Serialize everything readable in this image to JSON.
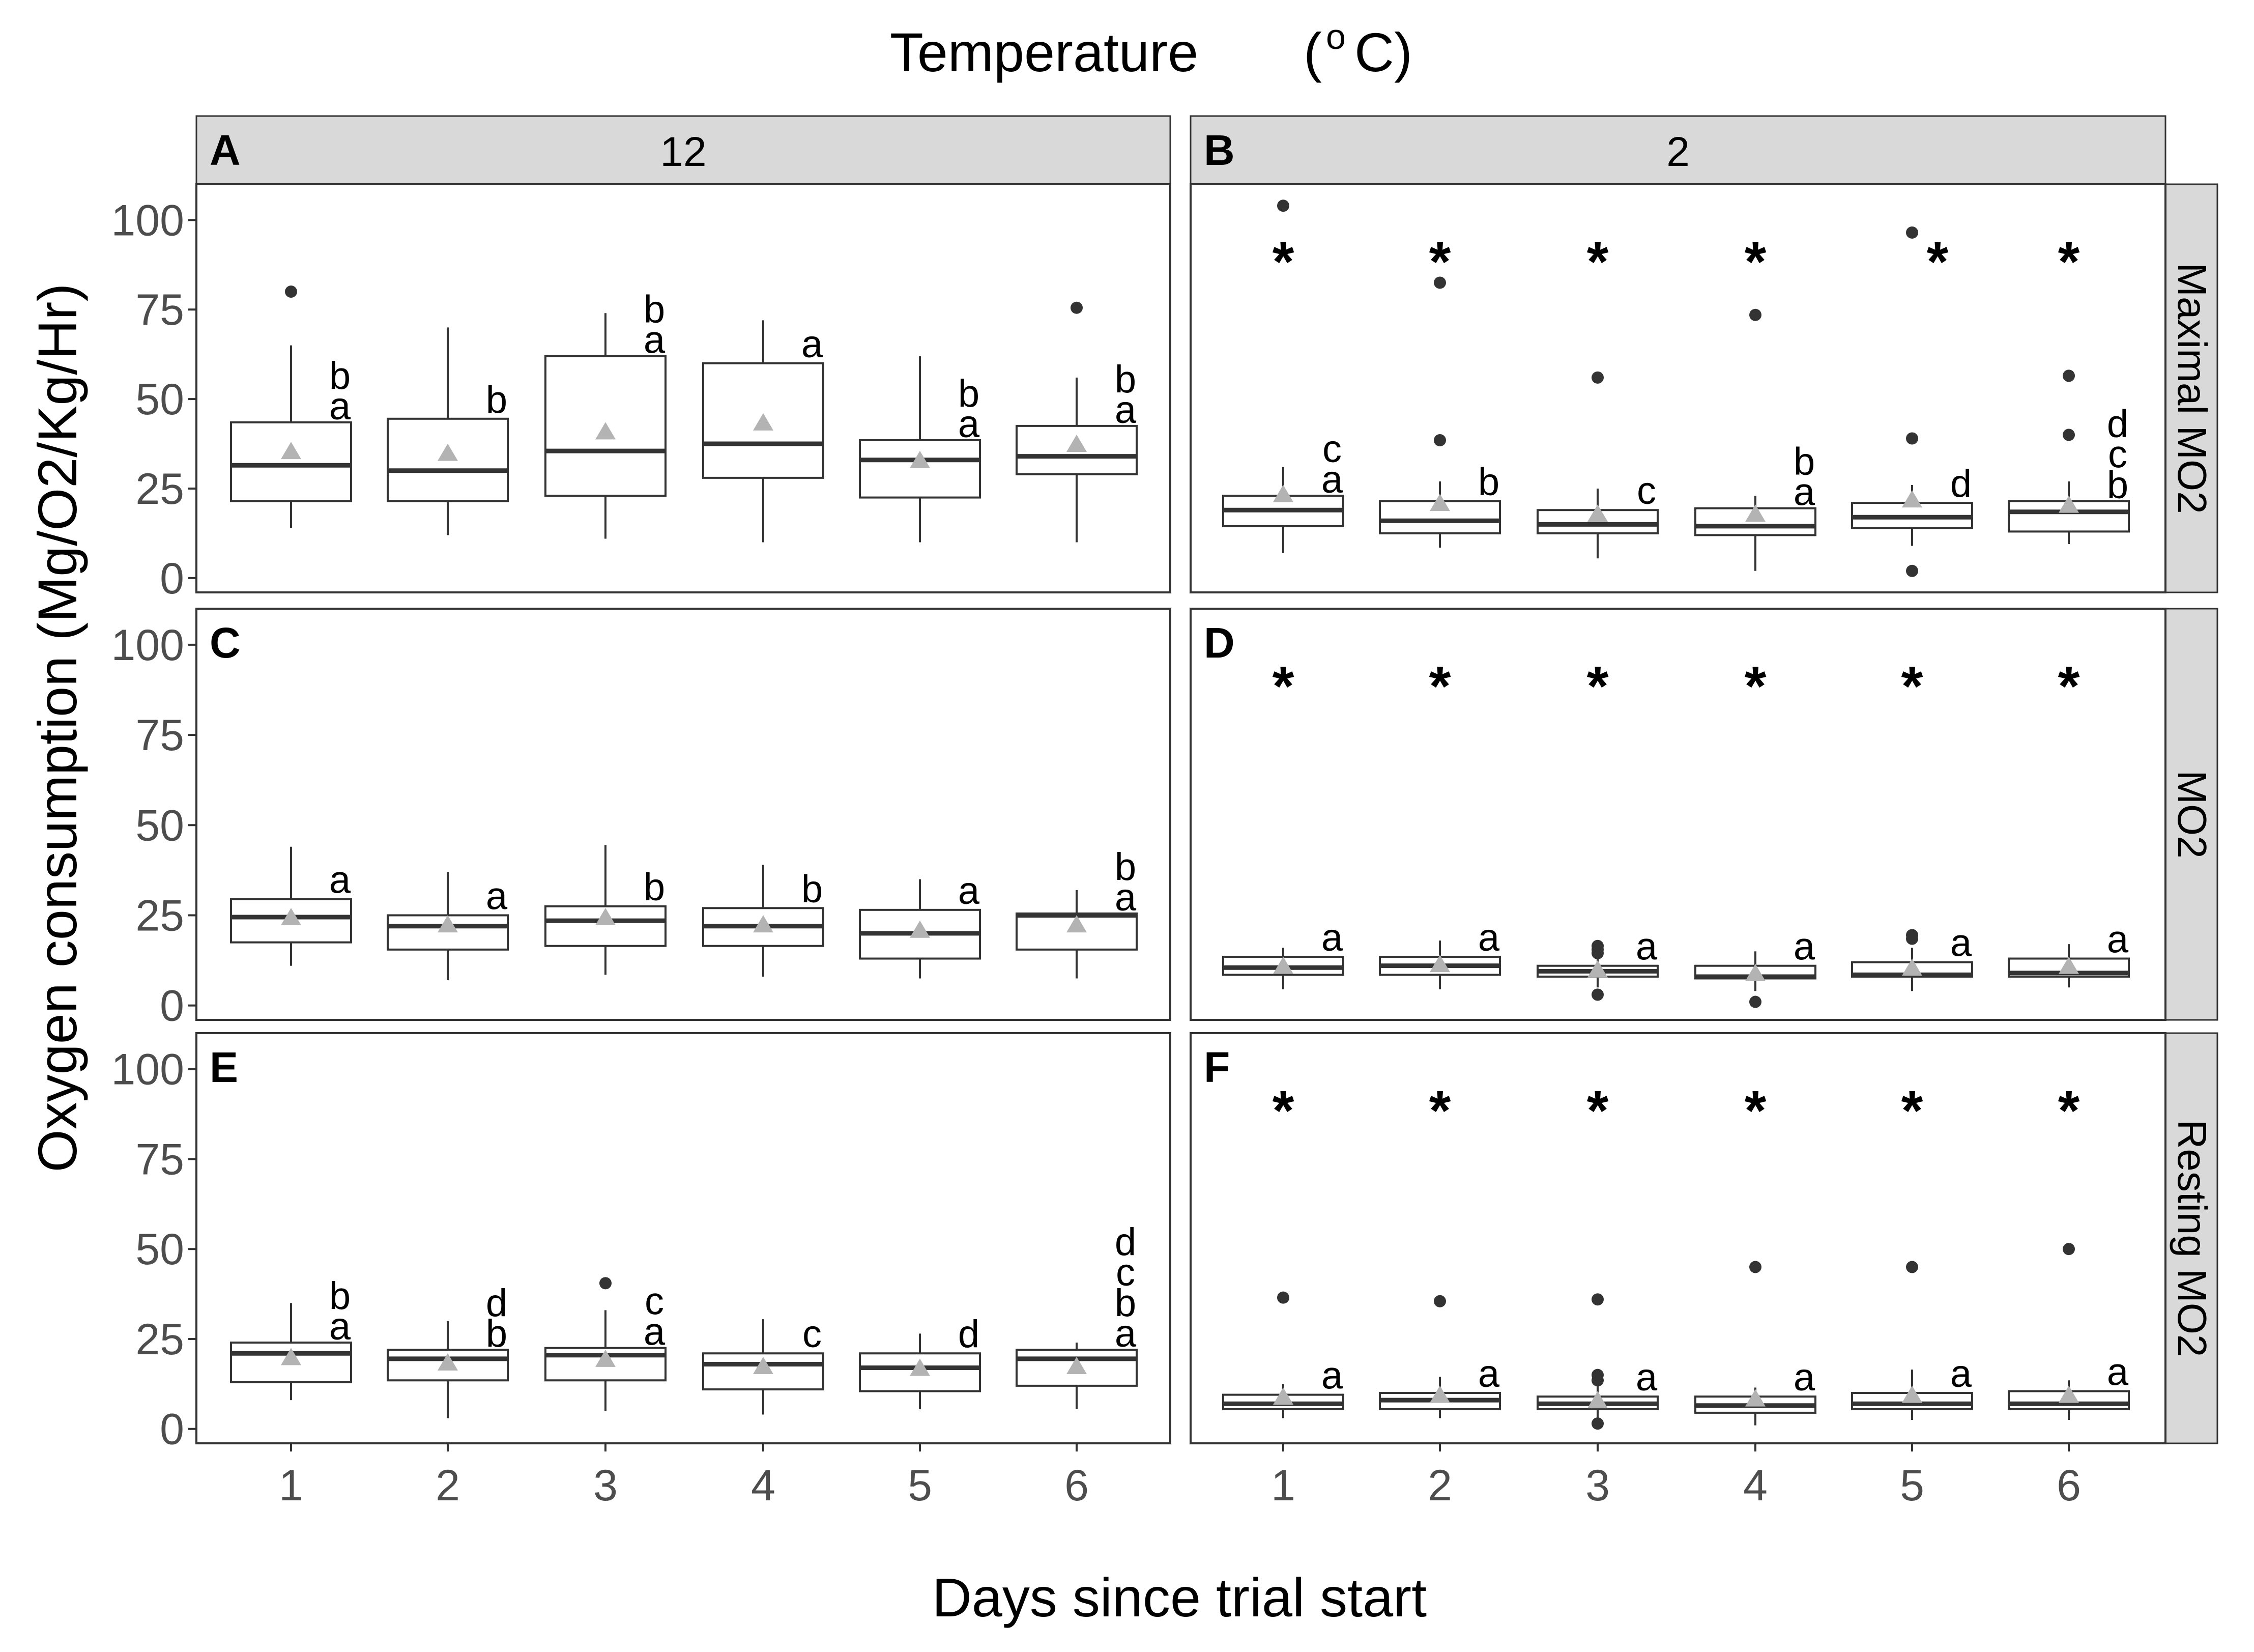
{
  "figure": {
    "title": "Temperature",
    "title_unit_o": "o",
    "title_unit_c": "C",
    "xlabel": "Days since trial start",
    "ylabel": "Oxygen consumption (Mg/O2/Kg/Hr)",
    "columns": [
      "12",
      "2"
    ],
    "rows": [
      "Maximal MO2",
      "MO2",
      "Resting MO2"
    ],
    "x_ticks": [
      "1",
      "2",
      "3",
      "4",
      "5",
      "6"
    ],
    "y_ticks": [
      "0",
      "25",
      "50",
      "75",
      "100"
    ]
  },
  "colors": {
    "strip_fill": "#d9d9d9",
    "panel_border": "#333333",
    "box_line": "#333333",
    "median_line": "#333333",
    "outlier": "#333333",
    "mean_marker": "#b3b3b3",
    "axis_text": "#4d4d4d",
    "text": "#000000"
  },
  "chart_data": {
    "type": "boxplot",
    "x": [
      1,
      2,
      3,
      4,
      5,
      6
    ],
    "ylim": [
      -4,
      110
    ],
    "y_ticks": [
      0,
      25,
      50,
      75,
      100
    ],
    "panels": [
      {
        "label": "A",
        "temperature": "12",
        "measure": "Maximal MO2",
        "boxes": [
          {
            "day": 1,
            "whisker_low": 14,
            "q1": 21.5,
            "median": 31.5,
            "q3": 43.5,
            "whisker_high": 65,
            "mean": 35.5,
            "outliers": [
              80
            ],
            "letters": [
              "b",
              "a"
            ]
          },
          {
            "day": 2,
            "whisker_low": 12,
            "q1": 21.5,
            "median": 30,
            "q3": 44.5,
            "whisker_high": 70,
            "mean": 35,
            "outliers": [],
            "letters": [
              "b"
            ]
          },
          {
            "day": 3,
            "whisker_low": 11,
            "q1": 23,
            "median": 35.5,
            "q3": 62,
            "whisker_high": 74,
            "mean": 41,
            "outliers": [],
            "letters": [
              "b",
              "a"
            ]
          },
          {
            "day": 4,
            "whisker_low": 10,
            "q1": 28,
            "median": 37.5,
            "q3": 60,
            "whisker_high": 72,
            "mean": 43.5,
            "outliers": [],
            "letters": [
              "a"
            ]
          },
          {
            "day": 5,
            "whisker_low": 10,
            "q1": 22.5,
            "median": 33,
            "q3": 38.5,
            "whisker_high": 62,
            "mean": 33,
            "outliers": [],
            "letters": [
              "b",
              "a"
            ]
          },
          {
            "day": 6,
            "whisker_low": 10,
            "q1": 29,
            "median": 34,
            "q3": 42.5,
            "whisker_high": 56,
            "mean": 37.5,
            "outliers": [
              75.5
            ],
            "letters": [
              "b",
              "a"
            ]
          }
        ],
        "asterisks": []
      },
      {
        "label": "B",
        "temperature": "2",
        "measure": "Maximal MO2",
        "boxes": [
          {
            "day": 1,
            "whisker_low": 7,
            "q1": 14.5,
            "median": 19,
            "q3": 23,
            "whisker_high": 31,
            "mean": 23.5,
            "outliers": [
              104
            ],
            "letters": [
              "c",
              "a"
            ]
          },
          {
            "day": 2,
            "whisker_low": 8.5,
            "q1": 12.5,
            "median": 16,
            "q3": 21.5,
            "whisker_high": 27,
            "mean": 21,
            "outliers": [
              82.5,
              38.5
            ],
            "letters": [
              "b"
            ]
          },
          {
            "day": 3,
            "whisker_low": 5.5,
            "q1": 12.5,
            "median": 15,
            "q3": 19,
            "whisker_high": 25,
            "mean": 18,
            "outliers": [
              56
            ],
            "letters": [
              "c"
            ]
          },
          {
            "day": 4,
            "whisker_low": 2,
            "q1": 12,
            "median": 14.5,
            "q3": 19.5,
            "whisker_high": 23,
            "mean": 18,
            "outliers": [
              73.5
            ],
            "letters": [
              "b",
              "a"
            ]
          },
          {
            "day": 5,
            "whisker_low": 9,
            "q1": 14,
            "median": 17,
            "q3": 21,
            "whisker_high": 26,
            "mean": 22,
            "outliers": [
              96.5,
              39,
              2
            ],
            "letters": [
              "d"
            ]
          },
          {
            "day": 6,
            "whisker_low": 9.5,
            "q1": 13,
            "median": 18.5,
            "q3": 21.5,
            "whisker_high": 27,
            "mean": 20.5,
            "outliers": [
              56.5,
              40
            ],
            "letters": [
              "d",
              "c",
              "b"
            ]
          }
        ],
        "asterisks": [
          1,
          2,
          3,
          4,
          5,
          6
        ]
      },
      {
        "label": "C",
        "temperature": "12",
        "measure": "MO2",
        "boxes": [
          {
            "day": 1,
            "whisker_low": 11,
            "q1": 17.5,
            "median": 24.5,
            "q3": 29.5,
            "whisker_high": 44,
            "mean": 24.5,
            "outliers": [],
            "letters": [
              "a"
            ]
          },
          {
            "day": 2,
            "whisker_low": 7,
            "q1": 15.5,
            "median": 22,
            "q3": 25,
            "whisker_high": 37,
            "mean": 22.5,
            "outliers": [],
            "letters": [
              "a"
            ]
          },
          {
            "day": 3,
            "whisker_low": 8.5,
            "q1": 16.5,
            "median": 23.5,
            "q3": 27.5,
            "whisker_high": 44.5,
            "mean": 24.5,
            "outliers": [],
            "letters": [
              "b"
            ]
          },
          {
            "day": 4,
            "whisker_low": 8,
            "q1": 16.5,
            "median": 22,
            "q3": 27,
            "whisker_high": 39,
            "mean": 22.5,
            "outliers": [],
            "letters": [
              "b"
            ]
          },
          {
            "day": 5,
            "whisker_low": 7.5,
            "q1": 13,
            "median": 20,
            "q3": 26.5,
            "whisker_high": 35,
            "mean": 21,
            "outliers": [],
            "letters": [
              "a"
            ]
          },
          {
            "day": 6,
            "whisker_low": 7.5,
            "q1": 15.5,
            "median": 25,
            "q3": 25.5,
            "whisker_high": 32,
            "mean": 22.5,
            "outliers": [],
            "letters": [
              "b",
              "a"
            ]
          }
        ],
        "asterisks": []
      },
      {
        "label": "D",
        "temperature": "2",
        "measure": "MO2",
        "boxes": [
          {
            "day": 1,
            "whisker_low": 4.5,
            "q1": 8.5,
            "median": 10.5,
            "q3": 13.5,
            "whisker_high": 16,
            "mean": 11,
            "outliers": [],
            "letters": [
              "a"
            ]
          },
          {
            "day": 2,
            "whisker_low": 4.5,
            "q1": 8.5,
            "median": 11,
            "q3": 13.5,
            "whisker_high": 18,
            "mean": 11.5,
            "outliers": [],
            "letters": [
              "a"
            ]
          },
          {
            "day": 3,
            "whisker_low": 5,
            "q1": 8,
            "median": 9.5,
            "q3": 11,
            "whisker_high": 14,
            "mean": 10,
            "outliers": [
              16.5,
              15.5,
              14.5,
              3
            ],
            "letters": [
              "a"
            ]
          },
          {
            "day": 4,
            "whisker_low": 4,
            "q1": 7.5,
            "median": 8,
            "q3": 11,
            "whisker_high": 15,
            "mean": 9,
            "outliers": [
              1
            ],
            "letters": [
              "a"
            ]
          },
          {
            "day": 5,
            "whisker_low": 4,
            "q1": 8,
            "median": 8.5,
            "q3": 12,
            "whisker_high": 16,
            "mean": 10.5,
            "outliers": [
              19.5,
              18.5
            ],
            "letters": [
              "a"
            ]
          },
          {
            "day": 6,
            "whisker_low": 5,
            "q1": 8,
            "median": 9,
            "q3": 13,
            "whisker_high": 17,
            "mean": 11,
            "outliers": [],
            "letters": [
              "a"
            ]
          }
        ],
        "asterisks": [
          1,
          2,
          3,
          4,
          5,
          6
        ]
      },
      {
        "label": "E",
        "temperature": "12",
        "measure": "Resting MO2",
        "boxes": [
          {
            "day": 1,
            "whisker_low": 8,
            "q1": 13,
            "median": 21,
            "q3": 24,
            "whisker_high": 35,
            "mean": 20,
            "outliers": [],
            "letters": [
              "b",
              "a"
            ]
          },
          {
            "day": 2,
            "whisker_low": 3,
            "q1": 13.5,
            "median": 19.5,
            "q3": 22,
            "whisker_high": 30,
            "mean": 18.5,
            "outliers": [],
            "letters": [
              "d",
              "b"
            ]
          },
          {
            "day": 3,
            "whisker_low": 5,
            "q1": 13.5,
            "median": 20.5,
            "q3": 22.5,
            "whisker_high": 33,
            "mean": 19.5,
            "outliers": [
              40.5
            ],
            "letters": [
              "c",
              "a"
            ]
          },
          {
            "day": 4,
            "whisker_low": 4,
            "q1": 11,
            "median": 18,
            "q3": 21,
            "whisker_high": 30.5,
            "mean": 17.5,
            "outliers": [],
            "letters": [
              "c"
            ]
          },
          {
            "day": 5,
            "whisker_low": 5.5,
            "q1": 10.5,
            "median": 17,
            "q3": 21,
            "whisker_high": 26.5,
            "mean": 17,
            "outliers": [],
            "letters": [
              "d"
            ]
          },
          {
            "day": 6,
            "whisker_low": 5.5,
            "q1": 12,
            "median": 19.5,
            "q3": 22,
            "whisker_high": 24,
            "mean": 17.5,
            "outliers": [],
            "letters": [
              "d",
              "c",
              "b",
              "a"
            ]
          }
        ],
        "asterisks": []
      },
      {
        "label": "F",
        "temperature": "2",
        "measure": "Resting MO2",
        "boxes": [
          {
            "day": 1,
            "whisker_low": 3,
            "q1": 5.5,
            "median": 7,
            "q3": 9.5,
            "whisker_high": 12.5,
            "mean": 9,
            "outliers": [
              36.5
            ],
            "letters": [
              "a"
            ]
          },
          {
            "day": 2,
            "whisker_low": 3,
            "q1": 5.5,
            "median": 8,
            "q3": 10,
            "whisker_high": 14.5,
            "mean": 9.5,
            "outliers": [
              35.5
            ],
            "letters": [
              "a"
            ]
          },
          {
            "day": 3,
            "whisker_low": 3,
            "q1": 5.5,
            "median": 7,
            "q3": 9,
            "whisker_high": 12,
            "mean": 8,
            "outliers": [
              36,
              15,
              13.5,
              1.5
            ],
            "letters": [
              "a"
            ]
          },
          {
            "day": 4,
            "whisker_low": 1,
            "q1": 4.5,
            "median": 6.5,
            "q3": 9,
            "whisker_high": 11.5,
            "mean": 8.5,
            "outliers": [
              45
            ],
            "letters": [
              "a"
            ]
          },
          {
            "day": 5,
            "whisker_low": 2.5,
            "q1": 5.5,
            "median": 7,
            "q3": 10,
            "whisker_high": 16.5,
            "mean": 9.5,
            "outliers": [
              45
            ],
            "letters": [
              "a"
            ]
          },
          {
            "day": 6,
            "whisker_low": 2.5,
            "q1": 5.5,
            "median": 7,
            "q3": 10.5,
            "whisker_high": 13.5,
            "mean": 9.5,
            "outliers": [
              50
            ],
            "letters": [
              "a"
            ]
          }
        ],
        "asterisks": [
          1,
          2,
          3,
          4,
          5,
          6
        ]
      }
    ]
  }
}
